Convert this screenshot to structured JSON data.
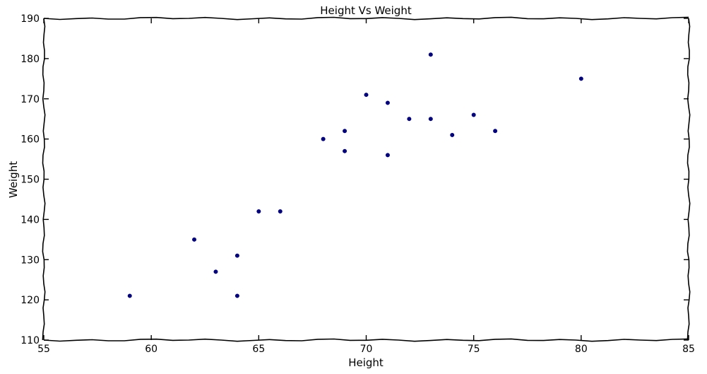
{
  "chart_data": {
    "type": "scatter",
    "title": "Height Vs Weight",
    "xlabel": "Height",
    "ylabel": "Weight",
    "xlim": [
      55,
      85
    ],
    "ylim": [
      110,
      190
    ],
    "xticks": [
      55,
      60,
      65,
      70,
      75,
      80,
      85
    ],
    "yticks": [
      110,
      120,
      130,
      140,
      150,
      160,
      170,
      180,
      190
    ],
    "grid": false,
    "marker_color": "#00007f",
    "series": [
      {
        "points": [
          {
            "x": 59,
            "y": 121
          },
          {
            "x": 62,
            "y": 135
          },
          {
            "x": 63,
            "y": 127
          },
          {
            "x": 64,
            "y": 131
          },
          {
            "x": 64,
            "y": 121
          },
          {
            "x": 65,
            "y": 142
          },
          {
            "x": 66,
            "y": 142
          },
          {
            "x": 68,
            "y": 160
          },
          {
            "x": 69,
            "y": 162
          },
          {
            "x": 69,
            "y": 157
          },
          {
            "x": 70,
            "y": 171
          },
          {
            "x": 71,
            "y": 169
          },
          {
            "x": 71,
            "y": 156
          },
          {
            "x": 72,
            "y": 165
          },
          {
            "x": 73,
            "y": 181
          },
          {
            "x": 73,
            "y": 165
          },
          {
            "x": 74,
            "y": 161
          },
          {
            "x": 75,
            "y": 166
          },
          {
            "x": 76,
            "y": 162
          },
          {
            "x": 80,
            "y": 175
          }
        ]
      }
    ]
  }
}
